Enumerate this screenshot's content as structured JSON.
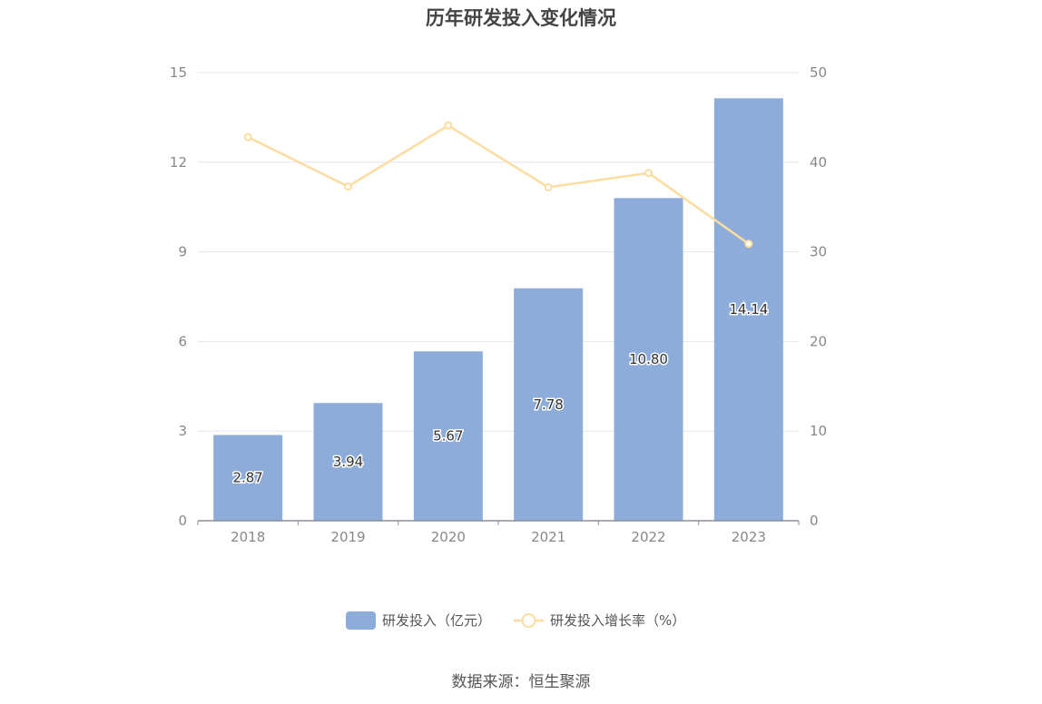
{
  "chart_data": {
    "type": "bar",
    "title": "历年研发投入变化情况",
    "categories": [
      "2018",
      "2019",
      "2020",
      "2021",
      "2022",
      "2023"
    ],
    "series": [
      {
        "name": "研发投入（亿元）",
        "type": "bar",
        "axis": "left",
        "color": "#8eacd9",
        "values": [
          2.87,
          3.94,
          5.67,
          7.78,
          10.8,
          14.14
        ],
        "labels": [
          "2.87",
          "3.94",
          "5.67",
          "7.78",
          "10.80",
          "14.14"
        ]
      },
      {
        "name": "研发投入增长率（%）",
        "type": "line",
        "axis": "right",
        "color": "#fcdca0",
        "values": [
          42.8,
          37.3,
          44.1,
          37.2,
          38.8,
          30.9
        ]
      }
    ],
    "y_left": {
      "min": 0,
      "max": 15,
      "ticks": [
        "0",
        "3",
        "6",
        "9",
        "12",
        "15"
      ]
    },
    "y_right": {
      "min": 0,
      "max": 50,
      "ticks": [
        "0",
        "10",
        "20",
        "30",
        "40",
        "50"
      ]
    },
    "grid": true,
    "legend_position": "bottom"
  },
  "source_text": "数据来源：恒生聚源"
}
